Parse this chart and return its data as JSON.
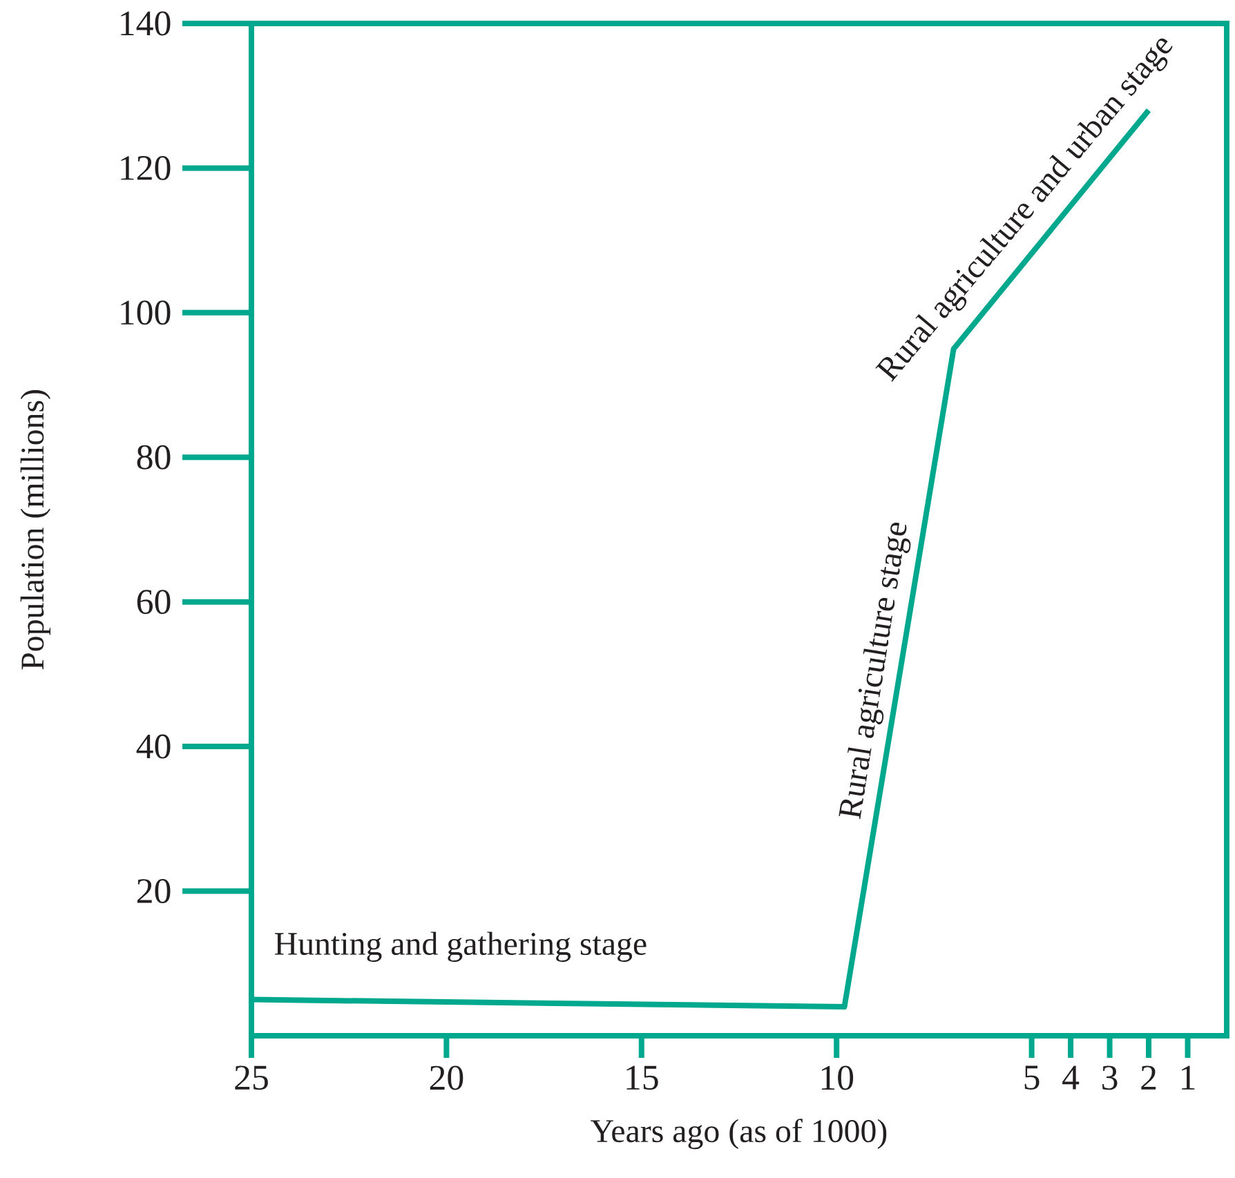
{
  "chart_data": {
    "type": "line",
    "xlabel": "Years ago (as of 1000)",
    "ylabel": "Population (millions)",
    "x": [
      25,
      9.8,
      7,
      2
    ],
    "series": [
      {
        "color": "#00a88e",
        "values": [
          5,
          4,
          95,
          128
        ]
      }
    ],
    "xlim": [
      25,
      0
    ],
    "xticks": [
      25,
      20,
      15,
      10,
      5,
      4,
      3,
      2,
      1
    ],
    "ylim": [
      0,
      140
    ],
    "yticks": [
      20,
      40,
      60,
      80,
      100,
      120,
      140
    ],
    "marker": "none",
    "line_style": "solid",
    "annotations": [
      "Hunting and gathering stage",
      {
        "text": "Rural agriculture stage",
        "x": 8.4,
        "y": 50
      },
      {
        "text": "Rural agriculture and urban  stage",
        "x": 4.5,
        "y": 111.5
      }
    ]
  }
}
